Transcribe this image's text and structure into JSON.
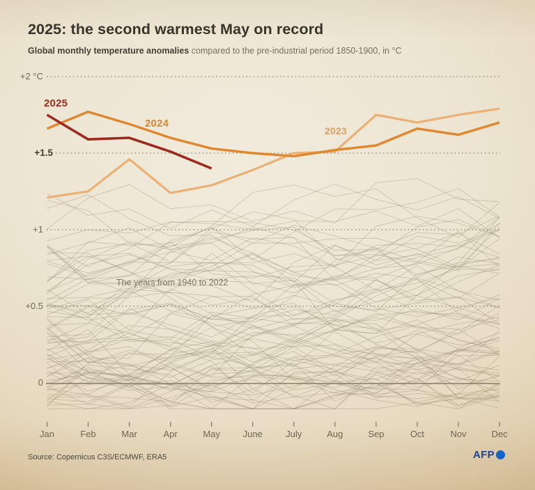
{
  "title": "2025: the second warmest May on record",
  "subtitle": {
    "bold": "Global monthly temperature anomalies",
    "rest": " compared to the pre-industrial period 1850-1900, in °C"
  },
  "annotation": "The years from 1940 to 2022",
  "source": "Source: Copernicus C3S/ECMWF, ERA5",
  "logo": {
    "text": "AFP"
  },
  "colors": {
    "accent_2025": "#9c2a1f",
    "accent_2024": "#e0862e",
    "accent_2023": "#ecb075",
    "grid": "#6f6754",
    "zero_line": "#857c6a",
    "background_lines": "#8f8569"
  },
  "chart_data": {
    "type": "line",
    "x": [
      "Jan",
      "Feb",
      "Mar",
      "Apr",
      "May",
      "June",
      "July",
      "Aug",
      "Sep",
      "Oct",
      "Nov",
      "Dec"
    ],
    "unit": "°C",
    "baseline_note": "anomalies vs pre-industrial 1850-1900",
    "ylim": [
      -0.3,
      2.1
    ],
    "yticks": [
      {
        "value": 2,
        "label": "+2 °C",
        "emphasis": false
      },
      {
        "value": 1.5,
        "label": "+1.5",
        "emphasis": true
      },
      {
        "value": 1,
        "label": "+1",
        "emphasis": false
      },
      {
        "value": 0.5,
        "label": "+0.5",
        "emphasis": false
      },
      {
        "value": 0,
        "label": "0",
        "emphasis": false
      }
    ],
    "grid": "horizontal dotted, solid zero line",
    "legend_position": "inline labels on lines",
    "series": [
      {
        "name": "2025",
        "color": "#9c2a1f",
        "width": 3.6,
        "values": [
          1.75,
          1.59,
          1.6,
          1.51,
          1.4
        ]
      },
      {
        "name": "2024",
        "color": "#e0862e",
        "width": 3.4,
        "values": [
          1.66,
          1.77,
          1.69,
          1.6,
          1.53,
          1.5,
          1.48,
          1.52,
          1.55,
          1.66,
          1.62,
          1.7
        ]
      },
      {
        "name": "2023",
        "color": "#ecb075",
        "width": 3.2,
        "values": [
          1.21,
          1.25,
          1.46,
          1.24,
          1.29,
          1.39,
          1.5,
          1.51,
          1.75,
          1.7,
          1.75,
          1.79
        ]
      }
    ],
    "background_series": {
      "label": "The years from 1940 to 2022",
      "count": 83,
      "approx_value_range": [
        -0.17,
        1.46
      ],
      "color": "#8f8569",
      "opacity": 0.33
    }
  }
}
